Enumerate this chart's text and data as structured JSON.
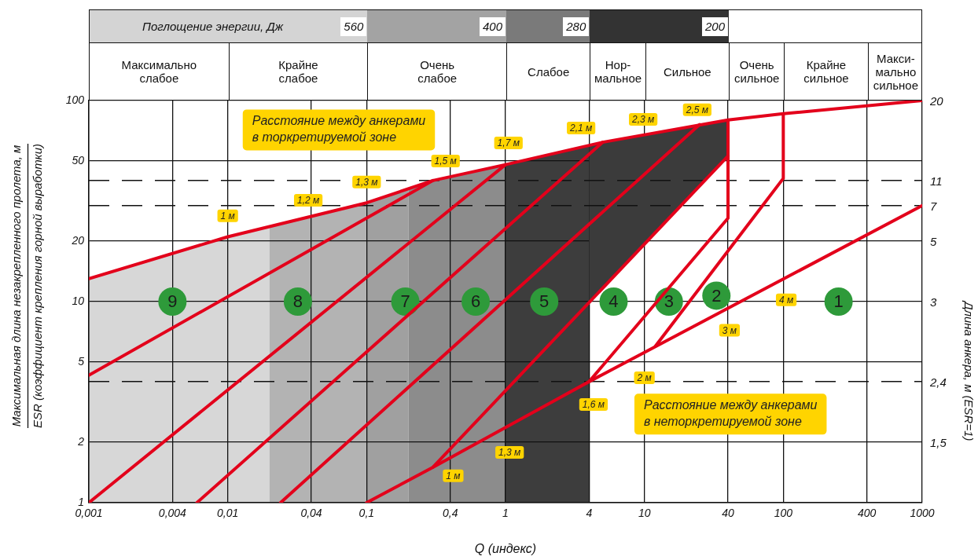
{
  "chart_data": [
    {
      "type": "other",
      "subtitle": "Поглощение энергии, Дж",
      "annotations": [
        "560",
        "400",
        "280",
        "200"
      ],
      "categories": [
        "Максимально\nслабое",
        "Крайне\nслабое",
        "Очень\nслабое",
        "Слабое",
        "Нор-\nмальное",
        "Сильное",
        "Очень\nсильное",
        "Крайне\nсильное",
        "Макси-\nмально\nсильное"
      ]
    },
    {
      "type": "line",
      "xlabel": "Q (индекс)",
      "ylabel": "Максимальная длина незакрепленного пролета, м\nESR (коэффициент крепления горной выработки)",
      "log": "xy",
      "grid": true,
      "xlim": [
        0.001,
        1000
      ],
      "xticks": [
        {
          "value": 0.001,
          "label": "0,001"
        },
        {
          "value": 0.004,
          "label": "0,004"
        },
        {
          "value": 0.01,
          "label": "0,01"
        },
        {
          "value": 0.04,
          "label": "0,04"
        },
        {
          "value": 0.1,
          "label": "0,1"
        },
        {
          "value": 0.4,
          "label": "0,4"
        },
        1,
        4,
        10,
        40,
        100,
        400,
        1000
      ],
      "ylim": [
        1,
        100
      ],
      "yticks": [
        1,
        2,
        5,
        10,
        20,
        50,
        100
      ],
      "series": [
        {
          "type": "line",
          "color": "#e3001b",
          "x": [
            0.001,
            0.01,
            0.1,
            0.3,
            1,
            5,
            40,
            100,
            1000
          ],
          "values": [
            13,
            21,
            31,
            40,
            48,
            62,
            80,
            86,
            100
          ]
        },
        {
          "type": "line",
          "color": "#e3001b",
          "x": [
            0.001,
            0.3
          ],
          "values": [
            4.3,
            40
          ]
        },
        {
          "type": "line",
          "color": "#e3001b",
          "x": [
            0.001,
            1
          ],
          "values": [
            1,
            48
          ]
        },
        {
          "type": "line",
          "color": "#e3001b",
          "x": [
            0.006,
            5
          ],
          "values": [
            1,
            62
          ]
        },
        {
          "type": "line",
          "color": "#e3001b",
          "x": [
            0.024,
            25
          ],
          "values": [
            1,
            76
          ]
        },
        {
          "type": "area",
          "color": "#3b3b3b",
          "x": [
            4,
            5,
            40,
            40,
            4
          ],
          "values": [
            60,
            62,
            80,
            53,
            9.9
          ]
        },
        {
          "type": "line",
          "color": "#e3001b",
          "x": [
            0.1,
            0.3,
            40
          ],
          "values": [
            1,
            1.5,
            53
          ]
        },
        {
          "type": "line",
          "color": "#e3001b",
          "x": [
            0.3,
            4,
            1000
          ],
          "values": [
            1.5,
            4,
            30
          ]
        },
        {
          "type": "line",
          "color": "#e3001b",
          "x": [
            4,
            40,
            40
          ],
          "values": [
            4,
            26,
            80
          ]
        },
        {
          "type": "line",
          "color": "#e3001b",
          "x": [
            12,
            100,
            100
          ],
          "values": [
            6,
            41,
            86
          ]
        },
        {
          "type": "scatter",
          "marker": "circle",
          "color": "#2e9a3a",
          "x": [
            0.004,
            0.032,
            0.19,
            0.61,
            1.9,
            6,
            15,
            33,
            250
          ],
          "values": [
            10,
            10,
            10,
            10,
            10,
            10,
            10,
            10.7,
            10
          ]
        }
      ],
      "bands": [
        {
          "axis": "x",
          "from": 0.001,
          "to": 0.02,
          "color": "#d7d7d7"
        },
        {
          "axis": "x",
          "from": 0.02,
          "to": 0.1,
          "color": "#b3b3b3"
        },
        {
          "axis": "x",
          "from": 0.1,
          "to": 0.2,
          "color": "#a0a0a0"
        },
        {
          "axis": "x",
          "from": 0.2,
          "to": 1,
          "color": "#8c8c8c"
        },
        {
          "axis": "x",
          "from": 1,
          "to": 4,
          "color": "#3d3d3d"
        }
      ],
      "ref_lines": [
        {
          "axis": "y",
          "value": 40,
          "line_style": "dashed",
          "color": "#111111"
        },
        {
          "axis": "y",
          "value": 30,
          "line_style": "dashed",
          "color": "#111111"
        },
        {
          "axis": "y",
          "value": 4,
          "line_style": "dashed",
          "color": "#111111"
        }
      ],
      "annotations": [
        "Расстояние между анкерами\nв торкретируемой зоне",
        "Расстояние между анкерами\nв неторкретируемой зоне",
        {
          "text": "9",
          "x": 0.004,
          "y": 10
        },
        {
          "text": "8",
          "x": 0.032,
          "y": 10
        },
        {
          "text": "7",
          "x": 0.19,
          "y": 10
        },
        {
          "text": "6",
          "x": 0.61,
          "y": 10
        },
        {
          "text": "5",
          "x": 1.9,
          "y": 10
        },
        {
          "text": "4",
          "x": 6,
          "y": 10
        },
        {
          "text": "3",
          "x": 15,
          "y": 10
        },
        {
          "text": "2",
          "x": 33,
          "y": 10.7
        },
        {
          "text": "1",
          "x": 250,
          "y": 10
        },
        {
          "text": "1 м",
          "x": 0.01,
          "y": 26.7
        },
        {
          "text": "1,2 м",
          "x": 0.038,
          "y": 31.9
        },
        {
          "text": "1,3 м",
          "x": 0.1,
          "y": 39.3
        },
        {
          "text": "1,5 м",
          "x": 0.37,
          "y": 50
        },
        {
          "text": "1,7 м",
          "x": 1.05,
          "y": 61.5
        },
        {
          "text": "2,1 м",
          "x": 3.5,
          "y": 73
        },
        {
          "text": "2,3 м",
          "x": 9.8,
          "y": 80.5
        },
        {
          "text": "2,5 м",
          "x": 24,
          "y": 90
        },
        {
          "text": "1 м",
          "x": 0.42,
          "y": 1.36
        },
        {
          "text": "1,3 м",
          "x": 1.07,
          "y": 1.78
        },
        {
          "text": "1,6 м",
          "x": 4.3,
          "y": 3.08
        },
        {
          "text": "2 м",
          "x": 10,
          "y": 4.18
        },
        {
          "text": "3 м",
          "x": 41,
          "y": 7.2
        },
        {
          "text": "4 м",
          "x": 105,
          "y": 10.2
        }
      ]
    },
    {
      "type": "other",
      "ylabel": "Длина анкера, м (ESR=1)",
      "annotations": [
        "20",
        "11",
        "7",
        "5",
        "3",
        "2,4",
        "1,5"
      ]
    }
  ]
}
